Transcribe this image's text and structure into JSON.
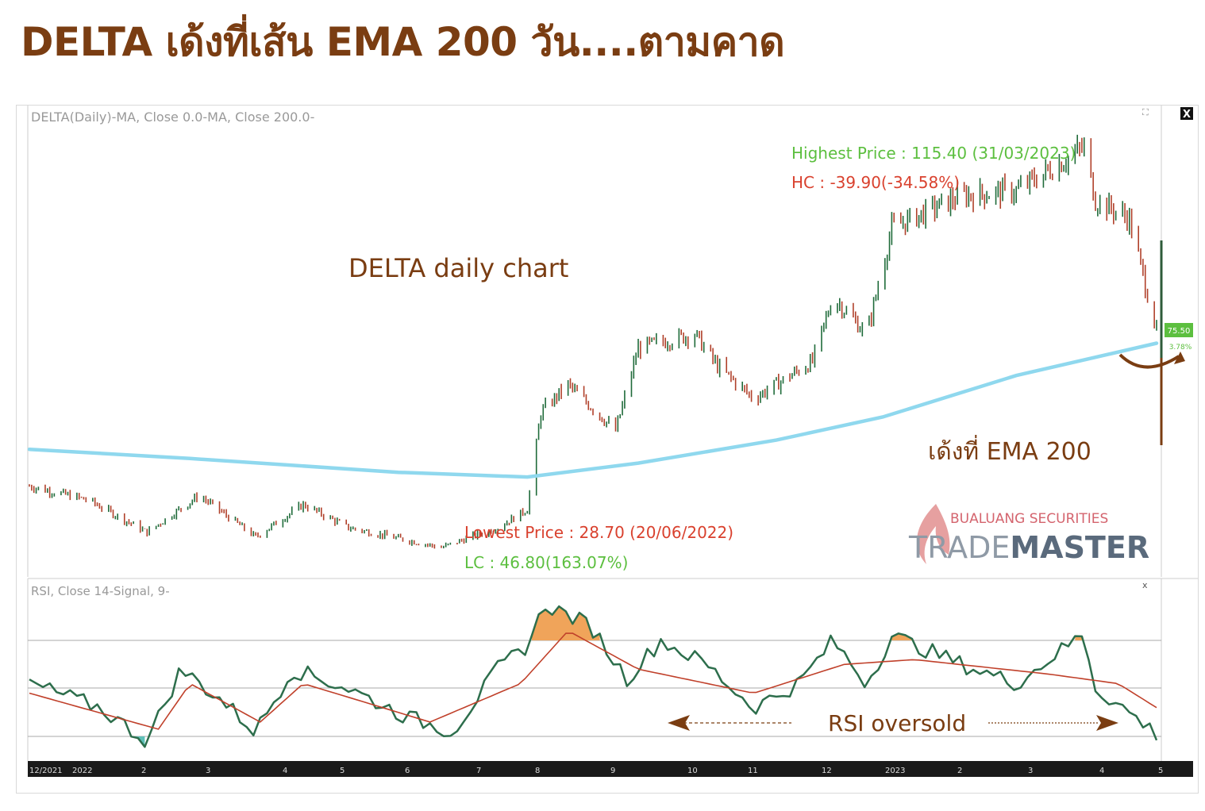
{
  "page": {
    "headline": "DELTA เด้งที่เส้น EMA 200 วัน....ตามคาด"
  },
  "main_panel": {
    "legend": "DELTA(Daily)-MA, Close 0.0-MA, Close 200.0-",
    "chart_label": "DELTA daily chart",
    "bounce_label": "เด้งที่ EMA 200",
    "highest_label": "Highest Price : 115.40 (31/03/2023)",
    "hc_label": "HC : -39.90(-34.58%)",
    "lowest_label": "Lowest Price : 28.70 (20/06/2022)",
    "lc_label": "LC : 46.80(163.07%)",
    "price_tag": "75.50",
    "pct_tag": "3.78%",
    "close_symbol": "X",
    "colors": {
      "up_bar": "#1f6b3a",
      "down_bar": "#b0402a",
      "ema": "#8fd8ee",
      "highest_text": "#5cbf3f",
      "hc_text": "#d9412e",
      "label_brown": "#7a3d12"
    }
  },
  "brand": {
    "line1": "BUALUANG SECURITIES",
    "line2a": "TRADE",
    "line2b": "MASTER",
    "icon": "flame-logo"
  },
  "rsi_panel": {
    "legend": "RSI, Close 14-Signal, 9-",
    "oversold_label": "RSI oversold",
    "controls": "x",
    "colors": {
      "rsi": "#2d6e4c",
      "signal": "#c0402a",
      "overbought_fill": "#f0a45a",
      "oversold_fill": "#5ec0b8"
    }
  },
  "x_axis": {
    "ticks": [
      "12/2021",
      "2022",
      "2",
      "3",
      "4",
      "5",
      "6",
      "7",
      "8",
      "9",
      "10",
      "11",
      "12",
      "2023",
      "2",
      "3",
      "4",
      "5"
    ]
  },
  "chart_data": [
    {
      "type": "candlestick",
      "title": "DELTA(Daily)",
      "x_range": [
        "2021-12-20",
        "2023-05-02"
      ],
      "y_range_approx": [
        25,
        120
      ],
      "keypoints": [
        {
          "date": "2021-12-20",
          "close": 42
        },
        {
          "date": "2022-01-15",
          "close": 39
        },
        {
          "date": "2022-02-10",
          "close": 32
        },
        {
          "date": "2022-03-05",
          "close": 40
        },
        {
          "date": "2022-03-30",
          "close": 31
        },
        {
          "date": "2022-04-20",
          "close": 38
        },
        {
          "date": "2022-05-10",
          "close": 33
        },
        {
          "date": "2022-06-20",
          "close": 28.7
        },
        {
          "date": "2022-07-15",
          "close": 33
        },
        {
          "date": "2022-07-28",
          "close": 37
        },
        {
          "date": "2022-08-03",
          "close": 58
        },
        {
          "date": "2022-08-15",
          "close": 64
        },
        {
          "date": "2022-09-05",
          "close": 54
        },
        {
          "date": "2022-09-15",
          "close": 72
        },
        {
          "date": "2022-10-10",
          "close": 75
        },
        {
          "date": "2022-10-20",
          "close": 68
        },
        {
          "date": "2022-11-05",
          "close": 61
        },
        {
          "date": "2022-12-01",
          "close": 69
        },
        {
          "date": "2022-12-10",
          "close": 83
        },
        {
          "date": "2022-12-25",
          "close": 75
        },
        {
          "date": "2023-01-05",
          "close": 98
        },
        {
          "date": "2023-02-05",
          "close": 105
        },
        {
          "date": "2023-03-01",
          "close": 106
        },
        {
          "date": "2023-03-31",
          "close": 115.4
        },
        {
          "date": "2023-04-05",
          "close": 104
        },
        {
          "date": "2023-04-20",
          "close": 100
        },
        {
          "date": "2023-05-02",
          "close": 75.5
        }
      ],
      "ema200": [
        {
          "date": "2021-12-20",
          "value": 50
        },
        {
          "date": "2022-03-01",
          "value": 48
        },
        {
          "date": "2022-06-01",
          "value": 45
        },
        {
          "date": "2022-07-28",
          "value": 44
        },
        {
          "date": "2022-09-15",
          "value": 47
        },
        {
          "date": "2022-11-15",
          "value": 52
        },
        {
          "date": "2023-01-01",
          "value": 57
        },
        {
          "date": "2023-03-01",
          "value": 66
        },
        {
          "date": "2023-05-02",
          "value": 73
        }
      ],
      "annotations": [
        "Highest Price : 115.40 (31/03/2023)",
        "HC : -39.90(-34.58%)",
        "Lowest Price : 28.70 (20/06/2022)",
        "LC : 46.80(163.07%)"
      ]
    },
    {
      "type": "line",
      "title": "RSI, Close 14-Signal, 9-",
      "y_levels": [
        30,
        50,
        70
      ],
      "series": [
        {
          "name": "RSI",
          "points": [
            {
              "date": "2021-12-20",
              "value": 52
            },
            {
              "date": "2022-01-20",
              "value": 42
            },
            {
              "date": "2022-02-10",
              "value": 28
            },
            {
              "date": "2022-02-25",
              "value": 58
            },
            {
              "date": "2022-03-15",
              "value": 45
            },
            {
              "date": "2022-03-30",
              "value": 32
            },
            {
              "date": "2022-04-15",
              "value": 58
            },
            {
              "date": "2022-05-10",
              "value": 50
            },
            {
              "date": "2022-06-05",
              "value": 38
            },
            {
              "date": "2022-06-25",
              "value": 32
            },
            {
              "date": "2022-07-15",
              "value": 58
            },
            {
              "date": "2022-07-28",
              "value": 68
            },
            {
              "date": "2022-08-05",
              "value": 85
            },
            {
              "date": "2022-08-25",
              "value": 76
            },
            {
              "date": "2022-09-10",
              "value": 54
            },
            {
              "date": "2022-09-25",
              "value": 70
            },
            {
              "date": "2022-10-15",
              "value": 60
            },
            {
              "date": "2022-11-05",
              "value": 42
            },
            {
              "date": "2022-11-25",
              "value": 52
            },
            {
              "date": "2022-12-10",
              "value": 70
            },
            {
              "date": "2022-12-25",
              "value": 52
            },
            {
              "date": "2023-01-05",
              "value": 72
            },
            {
              "date": "2023-02-05",
              "value": 60
            },
            {
              "date": "2023-03-01",
              "value": 52
            },
            {
              "date": "2023-03-31",
              "value": 73
            },
            {
              "date": "2023-04-05",
              "value": 50
            },
            {
              "date": "2023-04-20",
              "value": 40
            },
            {
              "date": "2023-05-02",
              "value": 31
            }
          ]
        },
        {
          "name": "Signal",
          "points": [
            {
              "date": "2021-12-20",
              "value": 48
            },
            {
              "date": "2022-02-15",
              "value": 33
            },
            {
              "date": "2022-03-01",
              "value": 52
            },
            {
              "date": "2022-04-01",
              "value": 36
            },
            {
              "date": "2022-04-20",
              "value": 52
            },
            {
              "date": "2022-06-15",
              "value": 36
            },
            {
              "date": "2022-07-25",
              "value": 52
            },
            {
              "date": "2022-08-15",
              "value": 74
            },
            {
              "date": "2022-09-15",
              "value": 58
            },
            {
              "date": "2022-11-05",
              "value": 48
            },
            {
              "date": "2022-12-15",
              "value": 60
            },
            {
              "date": "2023-01-15",
              "value": 62
            },
            {
              "date": "2023-03-15",
              "value": 56
            },
            {
              "date": "2023-04-15",
              "value": 52
            },
            {
              "date": "2023-05-02",
              "value": 42
            }
          ]
        }
      ]
    }
  ]
}
